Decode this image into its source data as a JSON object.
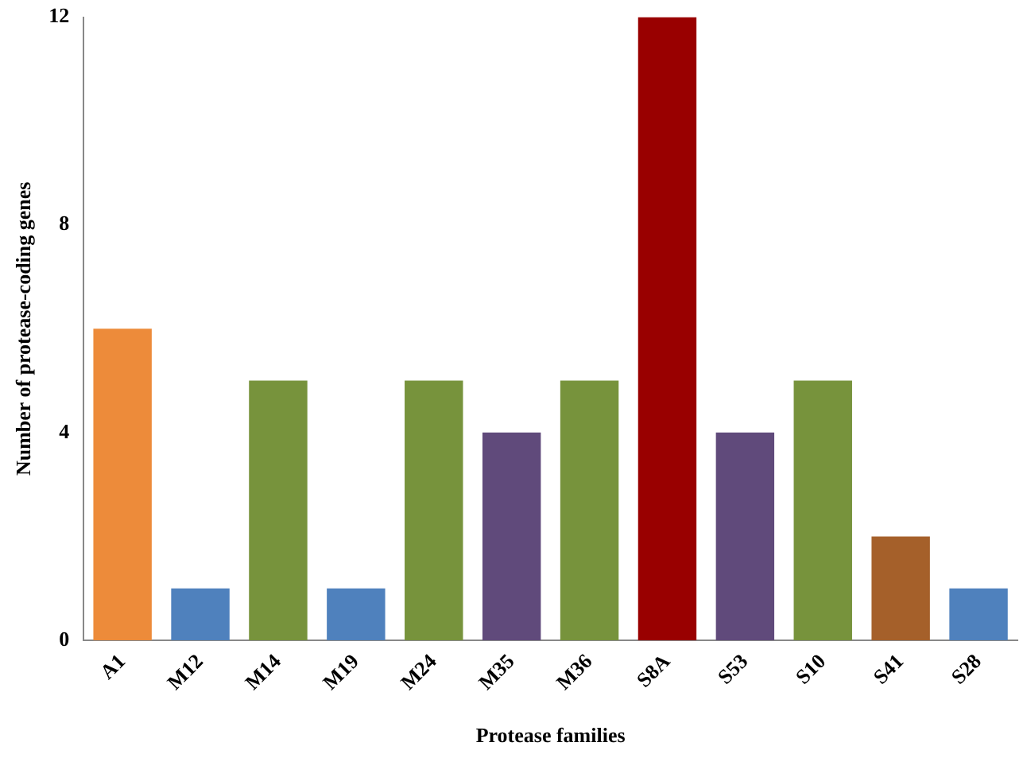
{
  "chart_data": {
    "type": "bar",
    "xlabel": "Protease families",
    "ylabel": "Number of protease-coding genes",
    "categories": [
      "A1",
      "M12",
      "M14",
      "M19",
      "M24",
      "M35",
      "M36",
      "S8A",
      "S53",
      "S10",
      "S41",
      "S28"
    ],
    "values": [
      6,
      1,
      5,
      1,
      5,
      4,
      5,
      12,
      4,
      5,
      2,
      1
    ],
    "colors": [
      "#ed8b3a",
      "#4f81bd",
      "#77933c",
      "#4f81bd",
      "#77933c",
      "#604a7b",
      "#77933c",
      "#990000",
      "#604a7b",
      "#77933c",
      "#a5602a",
      "#4f81bd"
    ],
    "ylim": [
      0,
      12
    ],
    "yticks": [
      0,
      4,
      8,
      12
    ],
    "grid": false,
    "legend": false
  }
}
